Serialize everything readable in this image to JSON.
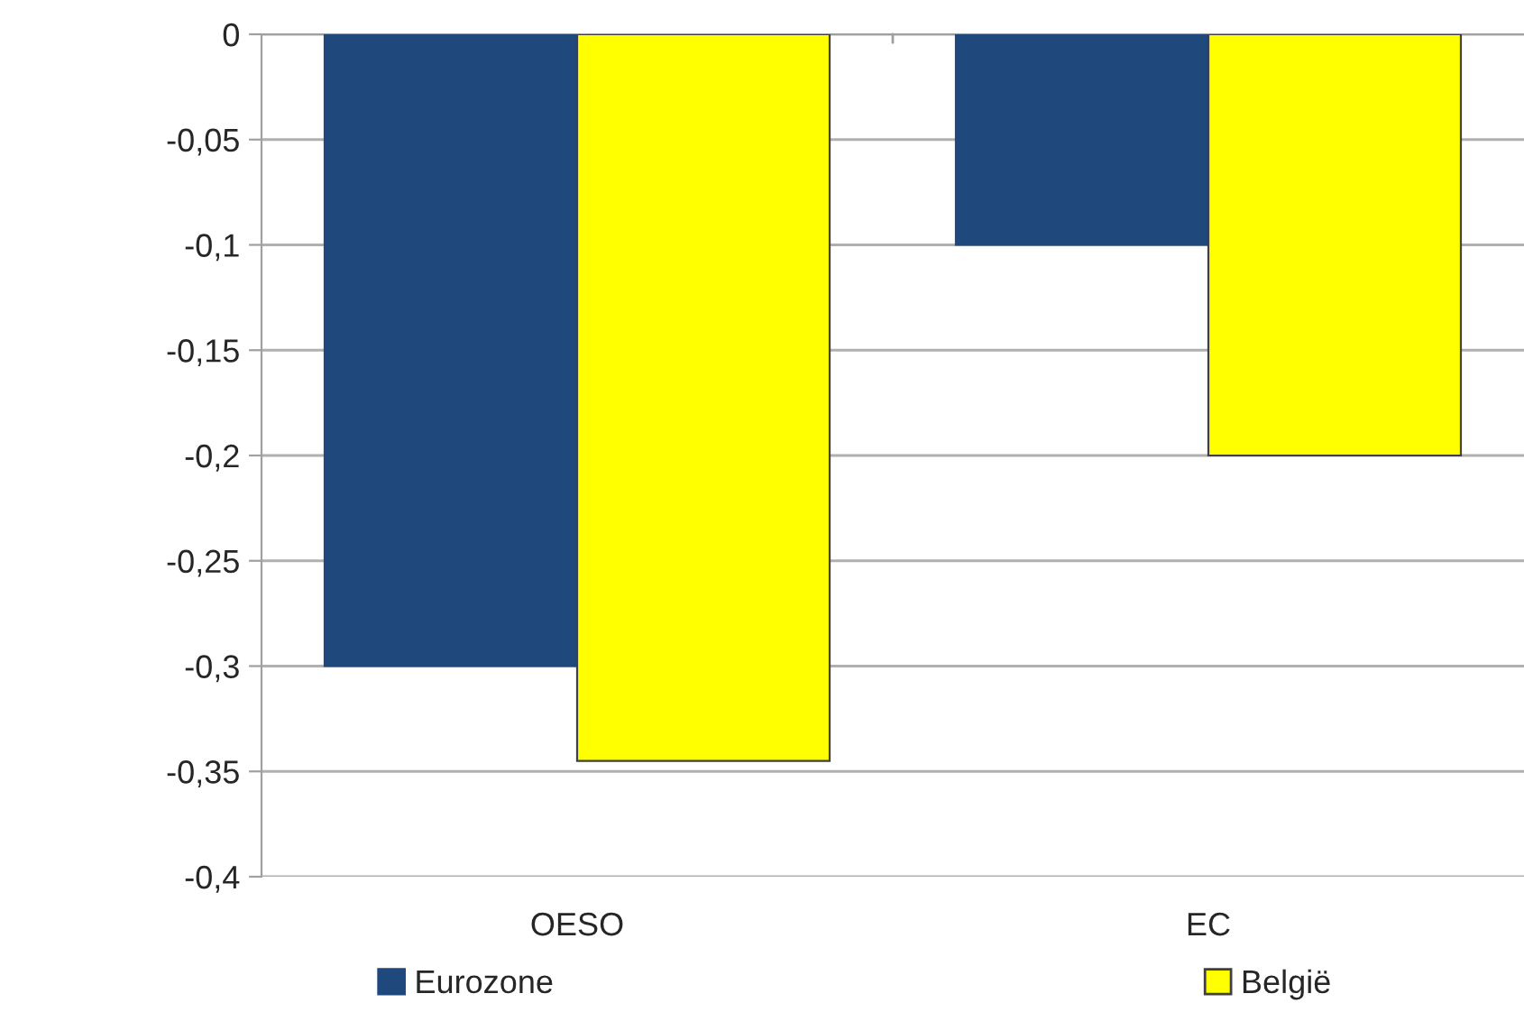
{
  "chart_data": {
    "type": "bar",
    "categories": [
      "OESO",
      "EC"
    ],
    "series": [
      {
        "name": "Eurozone",
        "color": "#1f497d",
        "values": [
          -0.3,
          -0.1
        ]
      },
      {
        "name": "België",
        "color": "#ffff00",
        "values": [
          -0.345,
          -0.2
        ]
      }
    ],
    "ylim": [
      -0.4,
      0
    ],
    "yticks": [
      {
        "value": 0,
        "label": "0"
      },
      {
        "value": -0.05,
        "label": "-0,05"
      },
      {
        "value": -0.1,
        "label": "-0,1"
      },
      {
        "value": -0.15,
        "label": "-0,15"
      },
      {
        "value": -0.2,
        "label": "-0,2"
      },
      {
        "value": -0.25,
        "label": "-0,25"
      },
      {
        "value": -0.3,
        "label": "-0,3"
      },
      {
        "value": -0.35,
        "label": "-0,35"
      },
      {
        "value": -0.4,
        "label": "-0,4"
      }
    ],
    "grid": "y",
    "legend": "bottom"
  }
}
